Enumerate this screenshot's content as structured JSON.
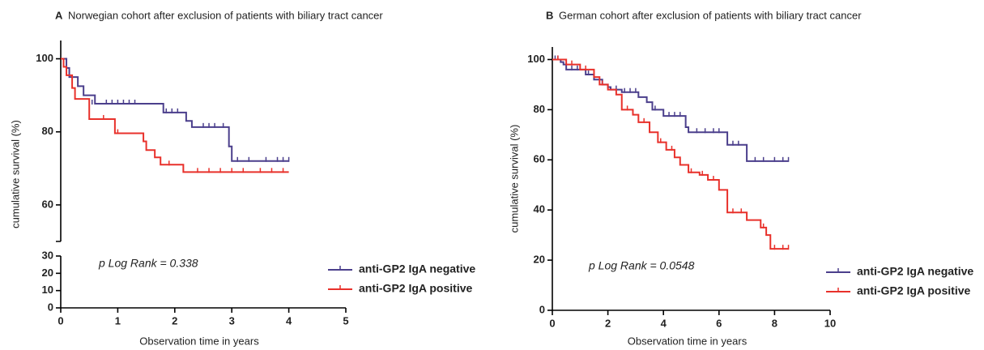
{
  "chart_data": [
    {
      "type": "line",
      "step": true,
      "label": "A",
      "title": "Norwegian cohort after exclusion of patients with biliary tract cancer",
      "xlabel": "Observation time in years",
      "ylabel": "cumulative survival (%)",
      "annotation": "p Log Rank = 0.338",
      "xlim": [
        0,
        5
      ],
      "xticks": [
        0,
        1,
        2,
        3,
        4,
        5
      ],
      "ylim": [
        0,
        105
      ],
      "ybreak": [
        30,
        50
      ],
      "yticks": [
        0,
        10,
        20,
        30,
        60,
        80,
        100
      ],
      "legend": "lower right",
      "series": [
        {
          "name": "anti-GP2 IgA negative",
          "color": "#4b3f8c",
          "x": [
            0,
            0.1,
            0.15,
            0.3,
            0.4,
            0.6,
            1.8,
            2.2,
            2.3,
            2.95,
            3.0,
            4.0
          ],
          "values": [
            100,
            97.5,
            95,
            92.5,
            90,
            87.7,
            85.3,
            83,
            81.3,
            76,
            72,
            72
          ],
          "censor_x": [
            0.55,
            0.8,
            0.9,
            1.0,
            1.1,
            1.2,
            1.3,
            1.85,
            1.95,
            2.05,
            2.5,
            2.6,
            2.7,
            2.85,
            3.1,
            3.3,
            3.6,
            3.8,
            3.9,
            4.0
          ],
          "censor_values": [
            87.7,
            87.7,
            87.7,
            87.7,
            87.7,
            87.7,
            87.7,
            85.3,
            85.3,
            85.3,
            81.3,
            81.3,
            81.3,
            81.3,
            72,
            72,
            72,
            72,
            72,
            72
          ]
        },
        {
          "name": "anti-GP2 IgA positive",
          "color": "#e8312b",
          "x": [
            0,
            0.05,
            0.1,
            0.2,
            0.25,
            0.5,
            0.95,
            1.45,
            1.5,
            1.65,
            1.75,
            2.15,
            4.0
          ],
          "values": [
            100,
            97.8,
            95.5,
            92,
            89,
            83.5,
            79.6,
            77.4,
            75,
            73,
            71,
            69,
            69
          ],
          "censor_x": [
            0.75,
            1.0,
            1.9,
            2.4,
            2.6,
            2.8,
            3.0,
            3.2,
            3.5,
            3.7,
            3.9
          ],
          "censor_values": [
            83.5,
            79.6,
            71,
            69,
            69,
            69,
            69,
            69,
            69,
            69,
            69
          ]
        }
      ]
    },
    {
      "type": "line",
      "step": true,
      "label": "B",
      "title": "German cohort after exclusion of patients with biliary tract cancer",
      "xlabel": "Observation time in years",
      "ylabel": "cumulative survival (%)",
      "annotation": "p Log Rank = 0.0548",
      "xlim": [
        0,
        10
      ],
      "xticks": [
        0,
        2,
        4,
        6,
        8,
        10
      ],
      "ylim": [
        0,
        105
      ],
      "yticks": [
        0,
        20,
        40,
        60,
        80,
        100
      ],
      "legend": "lower right",
      "series": [
        {
          "name": "anti-GP2 IgA negative",
          "color": "#4b3f8c",
          "x": [
            0,
            0.3,
            0.4,
            0.5,
            1.2,
            1.5,
            1.8,
            2.0,
            2.1,
            2.5,
            3.1,
            3.4,
            3.6,
            4.0,
            4.8,
            4.9,
            6.3,
            7.0,
            8.5
          ],
          "values": [
            100,
            99,
            98,
            96,
            94,
            92,
            90,
            89,
            88,
            87,
            85,
            83,
            80,
            77.5,
            73,
            71,
            66,
            59.5,
            59.5
          ],
          "censor_x": [
            0.1,
            0.2,
            0.7,
            0.9,
            1.3,
            2.3,
            2.6,
            2.8,
            3.0,
            3.7,
            4.2,
            4.4,
            4.6,
            5.2,
            5.5,
            5.8,
            6.0,
            6.5,
            6.7,
            7.3,
            7.6,
            8.0,
            8.3,
            8.5
          ],
          "censor_values": [
            100,
            100,
            96,
            96,
            94,
            88,
            87,
            87,
            87,
            80,
            77.5,
            77.5,
            77.5,
            71,
            71,
            71,
            71,
            66,
            66,
            59.5,
            59.5,
            59.5,
            59.5,
            59.5
          ]
        },
        {
          "name": "anti-GP2 IgA positive",
          "color": "#e8312b",
          "x": [
            0,
            0.5,
            1.0,
            1.5,
            1.7,
            2.0,
            2.3,
            2.5,
            2.9,
            3.1,
            3.5,
            3.8,
            4.1,
            4.4,
            4.6,
            4.9,
            5.3,
            5.6,
            6.0,
            6.3,
            7.0,
            7.5,
            7.7,
            7.85,
            8.5
          ],
          "values": [
            100,
            98,
            96,
            93,
            90,
            88,
            86,
            80,
            78,
            75,
            71,
            67,
            64,
            61,
            58,
            55,
            54,
            52,
            48,
            39,
            36,
            33,
            30,
            24.5,
            24.5
          ],
          "censor_x": [
            0.2,
            0.7,
            1.2,
            1.8,
            2.7,
            3.3,
            3.9,
            4.3,
            5.0,
            5.4,
            5.8,
            6.5,
            6.8,
            7.6,
            8.0,
            8.3,
            8.5
          ],
          "censor_values": [
            100,
            98,
            96,
            90,
            80,
            75,
            67,
            64,
            55,
            54,
            52,
            39,
            39,
            33,
            24.5,
            24.5,
            24.5
          ]
        }
      ]
    }
  ]
}
